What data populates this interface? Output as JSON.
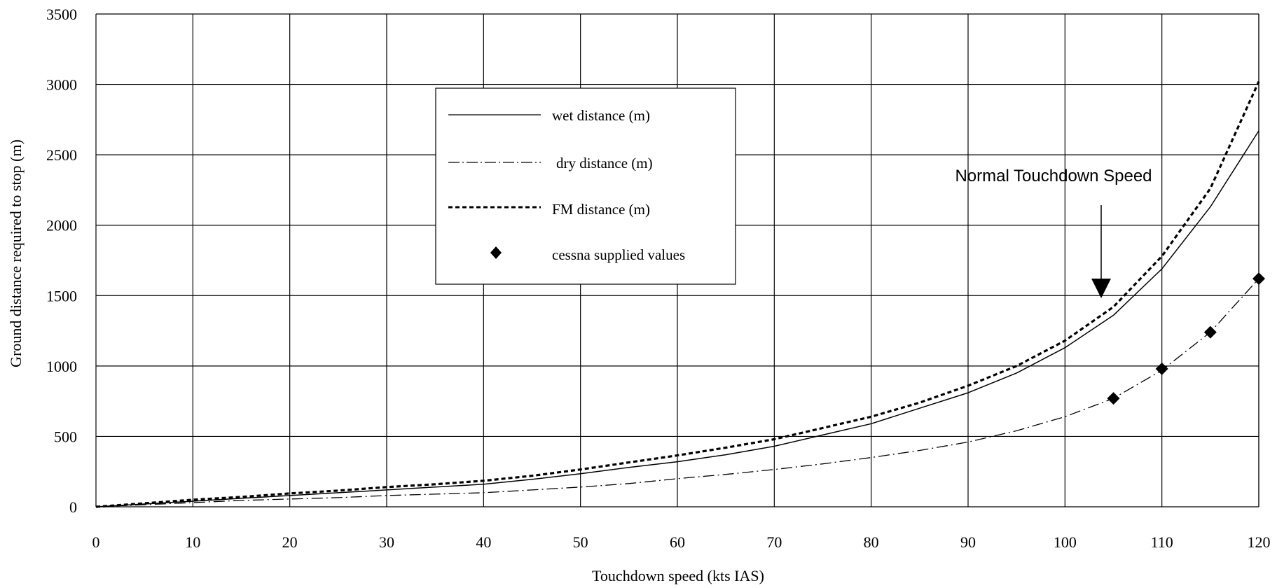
{
  "chart_data": {
    "type": "line",
    "xlabel": "Touchdown speed (kts IAS)",
    "ylabel": "Ground distance required to stop (m)",
    "xlim": [
      0,
      120
    ],
    "ylim": [
      0,
      3500
    ],
    "x_ticks": [
      "0",
      "10",
      "20",
      "30",
      "40",
      "50",
      "60",
      "70",
      "80",
      "90",
      "100",
      "110",
      "120"
    ],
    "y_ticks": [
      "0",
      "500",
      "1000",
      "1500",
      "2000",
      "2500",
      "3000",
      "3500"
    ],
    "grid": true,
    "legend_position": "upper-center",
    "x": [
      0,
      5,
      10,
      15,
      20,
      25,
      30,
      35,
      40,
      45,
      50,
      55,
      60,
      65,
      70,
      75,
      80,
      85,
      90,
      95,
      100,
      105,
      110,
      115,
      120
    ],
    "series": [
      {
        "name": "wet distance (m)",
        "style": "solid",
        "values": [
          0,
          20,
          40,
          60,
          80,
          100,
          120,
          140,
          160,
          195,
          235,
          280,
          320,
          370,
          430,
          510,
          590,
          700,
          810,
          950,
          1130,
          1360,
          1690,
          2130,
          2670
        ]
      },
      {
        "name": "dry distance (m)",
        "style": "dashdot",
        "values": [
          0,
          15,
          30,
          45,
          55,
          65,
          80,
          90,
          100,
          120,
          140,
          165,
          200,
          230,
          265,
          305,
          350,
          400,
          460,
          540,
          640,
          770,
          970,
          1240,
          1620
        ]
      },
      {
        "name": "FM distance (m)",
        "style": "dotted",
        "values": [
          0,
          25,
          50,
          70,
          95,
          115,
          140,
          160,
          185,
          220,
          265,
          315,
          365,
          420,
          480,
          560,
          640,
          740,
          860,
          1000,
          1180,
          1420,
          1780,
          2260,
          3020
        ]
      },
      {
        "name": "cessna supplied values",
        "style": "marker",
        "points": [
          {
            "x": 105,
            "y": 770
          },
          {
            "x": 110,
            "y": 980
          },
          {
            "x": 115,
            "y": 1240
          },
          {
            "x": 120,
            "y": 1620
          }
        ]
      }
    ],
    "annotations": [
      {
        "text": "Normal Touchdown Speed",
        "arrow_x": 104
      }
    ]
  }
}
